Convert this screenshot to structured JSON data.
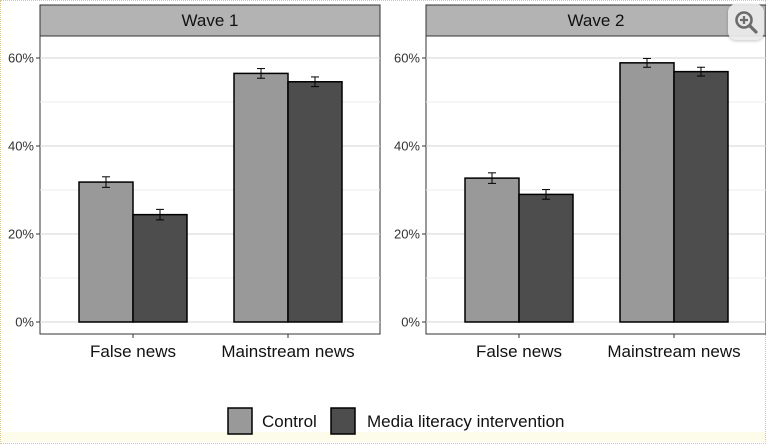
{
  "chart_data": {
    "type": "bar",
    "panels": [
      {
        "title": "Wave 1",
        "categories": [
          "False news",
          "Mainstream news"
        ],
        "series": [
          {
            "name": "Control",
            "values": [
              31.8,
              56.5
            ],
            "error": [
              1.2,
              1.1
            ],
            "color": "#999999"
          },
          {
            "name": "Media literacy intervention",
            "values": [
              24.4,
              54.6
            ],
            "error": [
              1.2,
              1.1
            ],
            "color": "#4d4d4d"
          }
        ]
      },
      {
        "title": "Wave 2",
        "categories": [
          "False news",
          "Mainstream news"
        ],
        "series": [
          {
            "name": "Control",
            "values": [
              32.7,
              58.9
            ],
            "error": [
              1.2,
              1.0
            ],
            "color": "#999999"
          },
          {
            "name": "Media literacy intervention",
            "values": [
              29.0,
              56.9
            ],
            "error": [
              1.1,
              1.0
            ],
            "color": "#4d4d4d"
          }
        ]
      }
    ],
    "y_ticks": [
      "0%",
      "20%",
      "40%",
      "60%"
    ],
    "ylim": [
      0,
      63
    ],
    "grid": true,
    "legend_placement": "bottom",
    "legend": [
      "Control",
      "Media literacy intervention"
    ]
  },
  "icons": {
    "zoom": "zoom-in-icon"
  }
}
